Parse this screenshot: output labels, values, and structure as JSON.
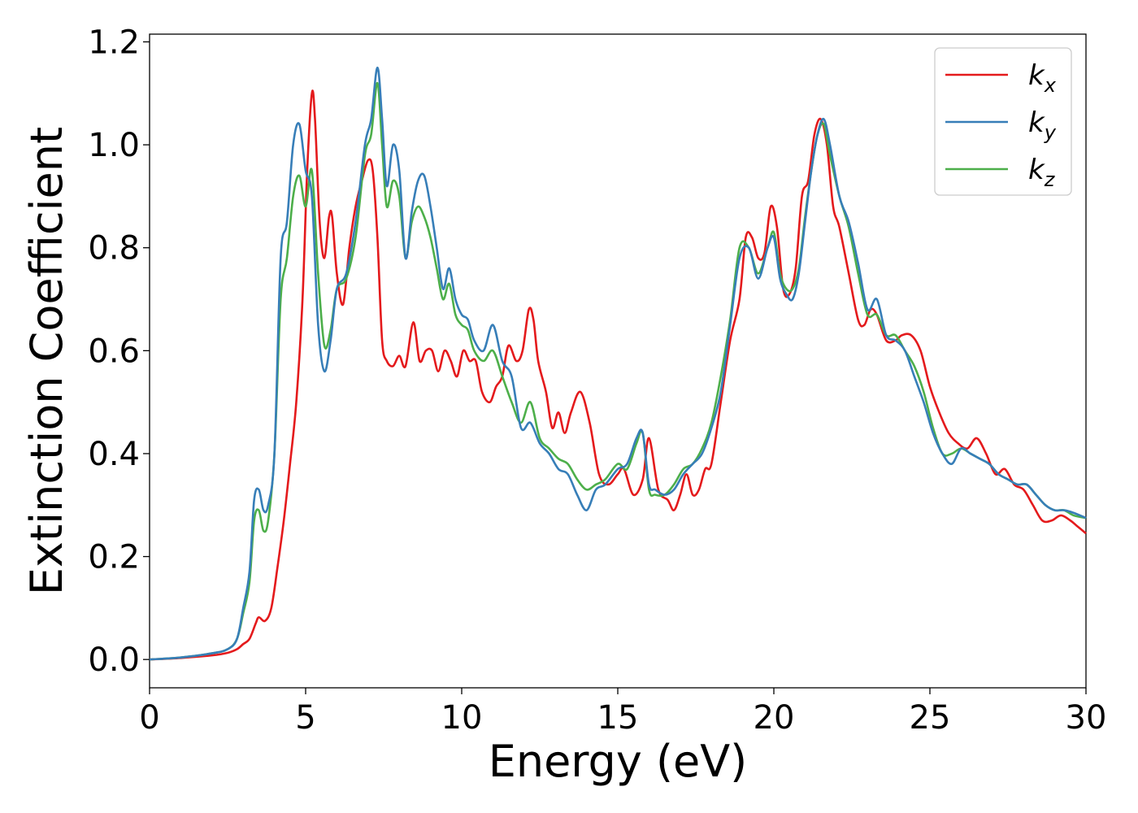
{
  "chart_data": {
    "type": "line",
    "xlabel": "Energy (eV)",
    "ylabel": "Extinction Coefficient",
    "xlim": [
      0,
      30
    ],
    "ylim": [
      -0.055,
      1.215
    ],
    "xticks": [
      0,
      5,
      10,
      15,
      20,
      25,
      30
    ],
    "xtick_labels": [
      "0",
      "5",
      "10",
      "15",
      "20",
      "25",
      "30"
    ],
    "yticks": [
      0.0,
      0.2,
      0.4,
      0.6,
      0.8,
      1.0,
      1.2
    ],
    "ytick_labels": [
      "0.0",
      "0.2",
      "0.4",
      "0.6",
      "0.8",
      "1.0",
      "1.2"
    ],
    "grid": false,
    "legend_position": "top-right",
    "series": [
      {
        "name": "k_x",
        "label_base": "k",
        "label_sub": "x",
        "color": "#e41a1c",
        "x": [
          0,
          1,
          2,
          2.5,
          2.8,
          3,
          3.2,
          3.4,
          3.5,
          3.7,
          3.9,
          4.1,
          4.3,
          4.5,
          4.7,
          4.9,
          5.05,
          5.2,
          5.3,
          5.45,
          5.6,
          5.75,
          5.85,
          6.0,
          6.2,
          6.4,
          6.6,
          6.8,
          7.0,
          7.15,
          7.3,
          7.45,
          7.6,
          7.8,
          8.0,
          8.2,
          8.45,
          8.65,
          8.85,
          9.05,
          9.25,
          9.45,
          9.65,
          9.85,
          10.05,
          10.25,
          10.45,
          10.65,
          10.9,
          11.1,
          11.3,
          11.5,
          11.75,
          11.95,
          12.15,
          12.3,
          12.45,
          12.7,
          12.9,
          13.1,
          13.3,
          13.5,
          13.8,
          14.1,
          14.4,
          14.7,
          15.0,
          15.2,
          15.5,
          15.8,
          16.0,
          16.3,
          16.6,
          16.8,
          17.0,
          17.2,
          17.4,
          17.6,
          17.8,
          18.0,
          18.3,
          18.6,
          18.9,
          19.1,
          19.3,
          19.5,
          19.7,
          19.9,
          20.1,
          20.3,
          20.5,
          20.7,
          20.9,
          21.1,
          21.3,
          21.5,
          21.7,
          21.9,
          22.1,
          22.4,
          22.7,
          22.9,
          23.1,
          23.3,
          23.6,
          23.9,
          24.1,
          24.4,
          24.7,
          25.0,
          25.3,
          25.6,
          25.9,
          26.2,
          26.5,
          26.8,
          27.1,
          27.4,
          27.7,
          28.0,
          28.3,
          28.6,
          28.9,
          29.2,
          29.5,
          29.7,
          30.0
        ],
        "y": [
          0.0,
          0.003,
          0.008,
          0.013,
          0.02,
          0.03,
          0.04,
          0.07,
          0.082,
          0.075,
          0.1,
          0.18,
          0.27,
          0.38,
          0.5,
          0.7,
          0.95,
          1.1,
          1.05,
          0.85,
          0.78,
          0.86,
          0.86,
          0.75,
          0.69,
          0.8,
          0.88,
          0.93,
          0.97,
          0.95,
          0.82,
          0.62,
          0.58,
          0.57,
          0.59,
          0.57,
          0.655,
          0.58,
          0.6,
          0.6,
          0.56,
          0.6,
          0.58,
          0.55,
          0.6,
          0.58,
          0.58,
          0.52,
          0.5,
          0.53,
          0.55,
          0.61,
          0.58,
          0.6,
          0.68,
          0.66,
          0.58,
          0.52,
          0.45,
          0.48,
          0.44,
          0.48,
          0.52,
          0.46,
          0.36,
          0.34,
          0.36,
          0.37,
          0.32,
          0.35,
          0.43,
          0.33,
          0.31,
          0.29,
          0.32,
          0.36,
          0.32,
          0.33,
          0.37,
          0.38,
          0.5,
          0.62,
          0.7,
          0.82,
          0.82,
          0.78,
          0.79,
          0.88,
          0.84,
          0.72,
          0.71,
          0.76,
          0.9,
          0.93,
          1.02,
          1.05,
          1.0,
          0.88,
          0.84,
          0.75,
          0.66,
          0.65,
          0.68,
          0.67,
          0.62,
          0.62,
          0.63,
          0.63,
          0.6,
          0.53,
          0.48,
          0.44,
          0.42,
          0.41,
          0.43,
          0.4,
          0.36,
          0.37,
          0.34,
          0.33,
          0.3,
          0.27,
          0.27,
          0.28,
          0.27,
          0.26,
          0.245
        ]
      },
      {
        "name": "k_y",
        "label_base": "k",
        "label_sub": "y",
        "color": "#377eb8",
        "x": [
          0,
          1,
          2,
          2.5,
          2.8,
          3,
          3.2,
          3.35,
          3.5,
          3.65,
          3.8,
          4.0,
          4.2,
          4.4,
          4.6,
          4.8,
          5.0,
          5.2,
          5.4,
          5.6,
          5.8,
          6.0,
          6.3,
          6.6,
          6.9,
          7.1,
          7.3,
          7.45,
          7.6,
          7.8,
          8.0,
          8.2,
          8.4,
          8.6,
          8.8,
          9.0,
          9.2,
          9.4,
          9.6,
          9.8,
          10.0,
          10.2,
          10.4,
          10.7,
          11.0,
          11.3,
          11.6,
          11.9,
          12.2,
          12.5,
          12.8,
          13.1,
          13.4,
          13.7,
          14.0,
          14.3,
          14.6,
          15.0,
          15.3,
          15.6,
          15.8,
          16.0,
          16.2,
          16.5,
          16.8,
          17.1,
          17.4,
          17.7,
          18.0,
          18.3,
          18.6,
          18.9,
          19.2,
          19.5,
          19.8,
          20.0,
          20.2,
          20.4,
          20.6,
          20.8,
          21.0,
          21.2,
          21.4,
          21.6,
          21.8,
          22.1,
          22.4,
          22.7,
          23.0,
          23.3,
          23.6,
          23.9,
          24.2,
          24.5,
          24.8,
          25.1,
          25.4,
          25.7,
          26.0,
          26.3,
          26.6,
          26.9,
          27.2,
          27.5,
          27.8,
          28.1,
          28.4,
          28.7,
          29.0,
          29.3,
          29.6,
          30.0
        ],
        "y": [
          0.0,
          0.004,
          0.012,
          0.02,
          0.04,
          0.1,
          0.17,
          0.31,
          0.33,
          0.29,
          0.3,
          0.4,
          0.78,
          0.85,
          1.0,
          1.04,
          0.95,
          0.9,
          0.65,
          0.56,
          0.62,
          0.72,
          0.75,
          0.85,
          1.0,
          1.05,
          1.15,
          1.05,
          0.92,
          1.0,
          0.95,
          0.78,
          0.87,
          0.93,
          0.94,
          0.88,
          0.8,
          0.72,
          0.76,
          0.7,
          0.67,
          0.66,
          0.62,
          0.6,
          0.65,
          0.58,
          0.55,
          0.45,
          0.46,
          0.42,
          0.4,
          0.37,
          0.36,
          0.32,
          0.29,
          0.33,
          0.34,
          0.37,
          0.38,
          0.43,
          0.44,
          0.34,
          0.33,
          0.32,
          0.33,
          0.36,
          0.38,
          0.4,
          0.45,
          0.52,
          0.65,
          0.78,
          0.8,
          0.74,
          0.8,
          0.82,
          0.74,
          0.71,
          0.7,
          0.75,
          0.85,
          0.95,
          1.02,
          1.05,
          1.0,
          0.9,
          0.85,
          0.77,
          0.68,
          0.7,
          0.63,
          0.62,
          0.6,
          0.55,
          0.5,
          0.44,
          0.4,
          0.38,
          0.41,
          0.4,
          0.39,
          0.38,
          0.36,
          0.35,
          0.34,
          0.34,
          0.32,
          0.3,
          0.29,
          0.29,
          0.285,
          0.275
        ]
      },
      {
        "name": "k_z",
        "label_base": "k",
        "label_sub": "z",
        "color": "#4daf4a",
        "x": [
          0,
          1,
          2,
          2.5,
          2.8,
          3,
          3.2,
          3.35,
          3.5,
          3.65,
          3.8,
          4.0,
          4.2,
          4.4,
          4.6,
          4.8,
          5.0,
          5.2,
          5.4,
          5.6,
          5.8,
          6.0,
          6.3,
          6.6,
          6.9,
          7.1,
          7.3,
          7.45,
          7.6,
          7.8,
          8.0,
          8.2,
          8.4,
          8.6,
          8.8,
          9.0,
          9.2,
          9.4,
          9.6,
          9.8,
          10.0,
          10.2,
          10.4,
          10.7,
          11.0,
          11.3,
          11.6,
          11.9,
          12.2,
          12.5,
          12.8,
          13.1,
          13.4,
          13.7,
          14.0,
          14.3,
          14.6,
          15.0,
          15.3,
          15.6,
          15.8,
          16.0,
          16.2,
          16.5,
          16.8,
          17.1,
          17.4,
          17.7,
          18.0,
          18.3,
          18.6,
          18.9,
          19.2,
          19.5,
          19.8,
          20.0,
          20.2,
          20.4,
          20.6,
          20.8,
          21.0,
          21.2,
          21.4,
          21.6,
          21.8,
          22.1,
          22.4,
          22.7,
          23.0,
          23.3,
          23.6,
          23.9,
          24.2,
          24.5,
          24.8,
          25.1,
          25.4,
          25.7,
          26.0,
          26.3,
          26.6,
          26.9,
          27.2,
          27.5,
          27.8,
          28.1,
          28.4,
          28.7,
          29.0,
          29.3,
          29.6,
          30.0
        ],
        "y": [
          0.0,
          0.004,
          0.012,
          0.02,
          0.04,
          0.09,
          0.15,
          0.27,
          0.29,
          0.25,
          0.27,
          0.4,
          0.7,
          0.78,
          0.9,
          0.94,
          0.88,
          0.95,
          0.75,
          0.61,
          0.64,
          0.72,
          0.74,
          0.82,
          0.98,
          1.02,
          1.12,
          1.0,
          0.88,
          0.93,
          0.9,
          0.78,
          0.85,
          0.88,
          0.86,
          0.82,
          0.76,
          0.7,
          0.73,
          0.67,
          0.65,
          0.64,
          0.6,
          0.58,
          0.6,
          0.55,
          0.5,
          0.46,
          0.5,
          0.43,
          0.41,
          0.39,
          0.38,
          0.35,
          0.33,
          0.34,
          0.35,
          0.38,
          0.37,
          0.42,
          0.44,
          0.33,
          0.32,
          0.32,
          0.34,
          0.37,
          0.38,
          0.41,
          0.46,
          0.55,
          0.66,
          0.8,
          0.8,
          0.75,
          0.8,
          0.83,
          0.75,
          0.72,
          0.72,
          0.76,
          0.86,
          0.95,
          1.02,
          1.04,
          0.98,
          0.9,
          0.84,
          0.75,
          0.67,
          0.67,
          0.63,
          0.63,
          0.6,
          0.57,
          0.52,
          0.45,
          0.4,
          0.4,
          0.41,
          0.4,
          0.39,
          0.38,
          0.36,
          0.35,
          0.34,
          0.34,
          0.32,
          0.3,
          0.29,
          0.29,
          0.28,
          0.275
        ]
      }
    ]
  }
}
